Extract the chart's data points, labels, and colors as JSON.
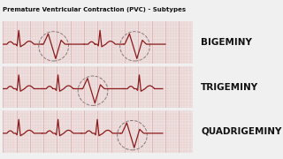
{
  "title": "Premature Ventricular Contraction (PVC) - Subtypes",
  "labels": [
    "BIGEMINY",
    "TRIGEMINY",
    "QUADRIGEMINY"
  ],
  "background_color": "#e8e8e8",
  "strip_bg": "#f7e8e8",
  "grid_color_minor": "#e8b8b8",
  "grid_color_major": "#d09090",
  "label_color": "#111111",
  "title_color": "#111111",
  "title_bg": "#e0e0e0",
  "title_fontsize": 5.0,
  "label_fontsize": 7.5,
  "ekg_color": "#8b1a1a",
  "circle_color": "#555555",
  "white_bg": "#f0f0f0"
}
